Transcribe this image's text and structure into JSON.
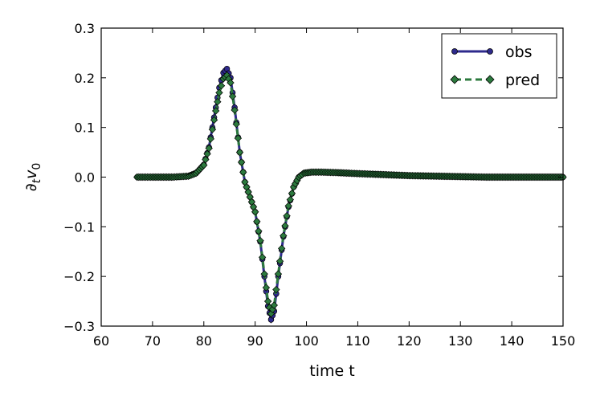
{
  "chart_data": {
    "type": "line",
    "xlabel": "time t",
    "ylabel_base": "∂",
    "ylabel_sub1": "t",
    "ylabel_mid": "v",
    "ylabel_sub2": "0",
    "xlim": [
      60,
      150
    ],
    "ylim": [
      -0.3,
      0.3
    ],
    "xticks": [
      60,
      70,
      80,
      90,
      100,
      110,
      120,
      130,
      140,
      150
    ],
    "yticks": [
      -0.3,
      -0.2,
      -0.1,
      0.0,
      0.1,
      0.2,
      0.3
    ],
    "xtick_labels": [
      "60",
      "70",
      "80",
      "90",
      "100",
      "110",
      "120",
      "130",
      "140",
      "150"
    ],
    "ytick_labels": [
      "−0.3",
      "−0.2",
      "−0.1",
      "0.0",
      "0.1",
      "0.2",
      "0.3"
    ],
    "grid": false,
    "legend_position": "top-right",
    "series": [
      {
        "name": "obs",
        "color": "#2e2a8c",
        "line_style": "solid",
        "marker": "circle",
        "x": [
          67,
          70,
          74,
          77,
          78.5,
          80,
          81,
          82,
          83,
          83.8,
          84.5,
          85.2,
          86,
          87,
          88,
          89,
          90,
          91,
          91.8,
          92.5,
          93.1,
          93.7,
          94.5,
          95.5,
          96.5,
          97.5,
          98.5,
          99.5,
          101,
          103,
          106,
          110,
          115,
          120,
          125,
          130,
          135,
          140,
          145,
          150
        ],
        "y": [
          0.0,
          0.0,
          0.0,
          0.002,
          0.008,
          0.025,
          0.06,
          0.12,
          0.18,
          0.21,
          0.218,
          0.2,
          0.14,
          0.05,
          -0.01,
          -0.04,
          -0.07,
          -0.13,
          -0.2,
          -0.26,
          -0.287,
          -0.27,
          -0.2,
          -0.12,
          -0.06,
          -0.02,
          0.0,
          0.008,
          0.01,
          0.01,
          0.009,
          0.007,
          0.005,
          0.003,
          0.002,
          0.001,
          0.0,
          0.0,
          0.0,
          0.0
        ]
      },
      {
        "name": "pred",
        "color": "#2c7a3e",
        "line_style": "dashed",
        "marker": "diamond",
        "x": [
          67,
          70,
          74,
          77,
          78.5,
          80,
          81,
          82,
          83,
          83.8,
          84.5,
          85.2,
          86,
          87,
          88,
          89,
          90,
          91,
          91.8,
          92.5,
          93.1,
          93.7,
          94.5,
          95.5,
          96.5,
          97.5,
          98.5,
          99.5,
          101,
          103,
          106,
          110,
          115,
          120,
          125,
          130,
          135,
          140,
          145,
          150
        ],
        "y": [
          0.0,
          0.0,
          0.0,
          0.002,
          0.008,
          0.024,
          0.058,
          0.115,
          0.17,
          0.198,
          0.205,
          0.19,
          0.135,
          0.05,
          -0.01,
          -0.04,
          -0.07,
          -0.128,
          -0.195,
          -0.25,
          -0.275,
          -0.258,
          -0.195,
          -0.118,
          -0.058,
          -0.02,
          0.0,
          0.008,
          0.01,
          0.01,
          0.009,
          0.007,
          0.005,
          0.003,
          0.002,
          0.001,
          0.0,
          0.0,
          0.0,
          0.0
        ]
      }
    ]
  }
}
